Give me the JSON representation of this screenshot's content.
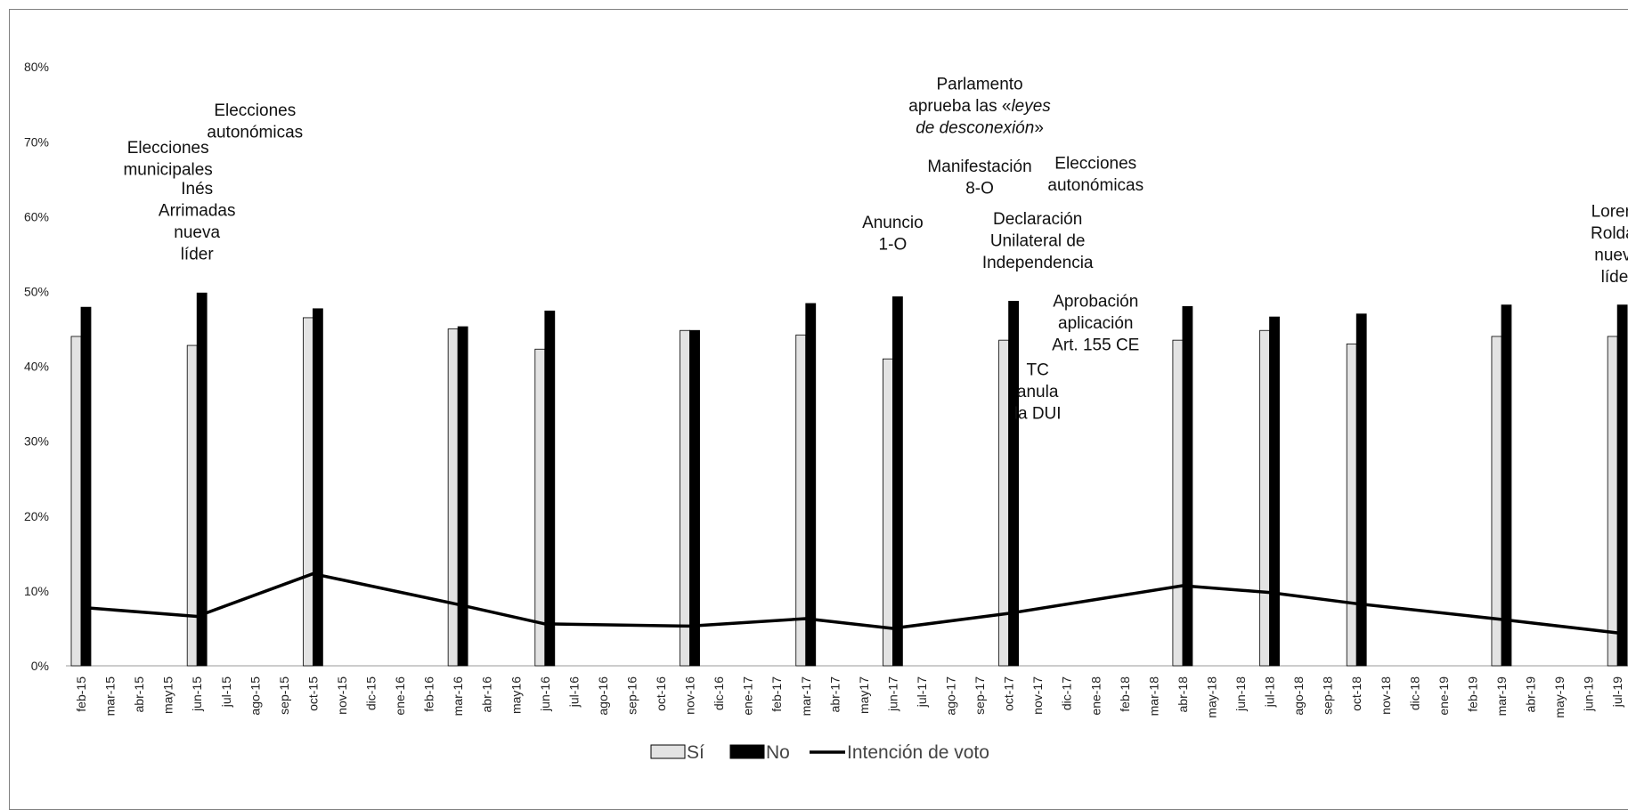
{
  "chart_data": {
    "type": "bar",
    "title": "",
    "xlabel": "",
    "ylabel": "",
    "ylim": [
      0,
      80
    ],
    "yticks": [
      "0%",
      "10%",
      "20%",
      "30%",
      "40%",
      "50%",
      "60%",
      "70%",
      "80%"
    ],
    "grid": false,
    "legend_position": "bottom",
    "categories": [
      "feb-15",
      "mar-15",
      "abr-15",
      "may15",
      "jun-15",
      "jul-15",
      "ago-15",
      "sep-15",
      "oct-15",
      "nov-15",
      "dic-15",
      "ene-16",
      "feb-16",
      "mar-16",
      "abr-16",
      "may16",
      "jun-16",
      "jul-16",
      "ago-16",
      "sep-16",
      "oct-16",
      "nov-16",
      "dic-16",
      "ene-17",
      "feb-17",
      "mar-17",
      "abr-17",
      "may17",
      "jun-17",
      "jul-17",
      "ago-17",
      "sep-17",
      "oct-17",
      "nov-17",
      "dic-17",
      "ene-18",
      "feb-18",
      "mar-18",
      "abr-18",
      "may-18",
      "jun-18",
      "jul-18",
      "ago-18",
      "sep-18",
      "oct-18",
      "nov-18",
      "dic-18",
      "ene-19",
      "feb-19",
      "mar-19",
      "abr-19",
      "may-19",
      "jun-19",
      "jul-19"
    ],
    "series": [
      {
        "name": "Sí",
        "kind": "bar",
        "color": "#e3e3e3",
        "points": [
          [
            "feb-15",
            44
          ],
          [
            "jun-15",
            42.8
          ],
          [
            "oct-15",
            46.5
          ],
          [
            "mar-16",
            45
          ],
          [
            "jun-16",
            42.3
          ],
          [
            "nov-16",
            44.8
          ],
          [
            "mar-17",
            44.2
          ],
          [
            "jun-17",
            41
          ],
          [
            "oct-17",
            43.5
          ],
          [
            "abr-18",
            43.5
          ],
          [
            "jul-18",
            44.8
          ],
          [
            "oct-18",
            43
          ],
          [
            "mar-19",
            44
          ],
          [
            "jul-19",
            44
          ]
        ]
      },
      {
        "name": "No",
        "kind": "bar",
        "color": "#000000",
        "points": [
          [
            "feb-15",
            47.9
          ],
          [
            "jun-15",
            49.8
          ],
          [
            "oct-15",
            47.7
          ],
          [
            "mar-16",
            45.3
          ],
          [
            "jun-16",
            47.4
          ],
          [
            "nov-16",
            44.8
          ],
          [
            "mar-17",
            48.4
          ],
          [
            "jun-17",
            49.3
          ],
          [
            "oct-17",
            48.7
          ],
          [
            "abr-18",
            48
          ],
          [
            "jul-18",
            46.6
          ],
          [
            "oct-18",
            47
          ],
          [
            "mar-19",
            48.2
          ],
          [
            "jul-19",
            48.2
          ]
        ]
      },
      {
        "name": "Intención de voto",
        "kind": "line",
        "color": "#000000",
        "points": [
          [
            "feb-15",
            7.8
          ],
          [
            "jun-15",
            6.6
          ],
          [
            "oct-15",
            12.3
          ],
          [
            "mar-16",
            8.2
          ],
          [
            "jun-16",
            5.6
          ],
          [
            "nov-16",
            5.3
          ],
          [
            "mar-17",
            6.3
          ],
          [
            "jun-17",
            5
          ],
          [
            "oct-17",
            7
          ],
          [
            "abr-18",
            10.7
          ],
          [
            "jul-18",
            9.8
          ],
          [
            "oct-18",
            8.3
          ],
          [
            "mar-19",
            6.2
          ],
          [
            "jul-19",
            4.4
          ]
        ]
      }
    ],
    "annotations": [
      {
        "lines": [
          "Elecciones",
          "municipales"
        ],
        "at": "may15",
        "y": 68.5
      },
      {
        "lines": [
          "Elecciones",
          "autonómicas"
        ],
        "at": "ago-15",
        "y": 73.5
      },
      {
        "lines": [
          "Inés",
          "Arrimadas",
          "nueva",
          "líder"
        ],
        "at": "jun-15",
        "y": 63
      },
      {
        "lines": [
          "Parlamento",
          "aprueba las «leyes",
          "de desconexión»"
        ],
        "at": "sep-17",
        "y": 77
      },
      {
        "lines": [
          "Manifestación",
          "8-O"
        ],
        "at": "sep-17",
        "y": 66
      },
      {
        "lines": [
          "Elecciones",
          "autonómicas"
        ],
        "at": "ene-18",
        "y": 66.4
      },
      {
        "lines": [
          "Anuncio",
          "1-O"
        ],
        "at": "jun-17",
        "y": 58.5
      },
      {
        "lines": [
          "Declaración",
          "Unilateral de",
          "Independencia"
        ],
        "at": "nov-17",
        "y": 59
      },
      {
        "lines": [
          "Aprobación",
          "aplicación",
          "Art. 155 CE"
        ],
        "at": "ene-18",
        "y": 48
      },
      {
        "lines": [
          "TC",
          "anula",
          "la DUI"
        ],
        "at": "nov-17",
        "y": 38.8
      },
      {
        "lines": [
          "Lorena",
          "Roldán",
          "nueva",
          "líder"
        ],
        "at": "jul-19",
        "y": 60
      }
    ]
  }
}
